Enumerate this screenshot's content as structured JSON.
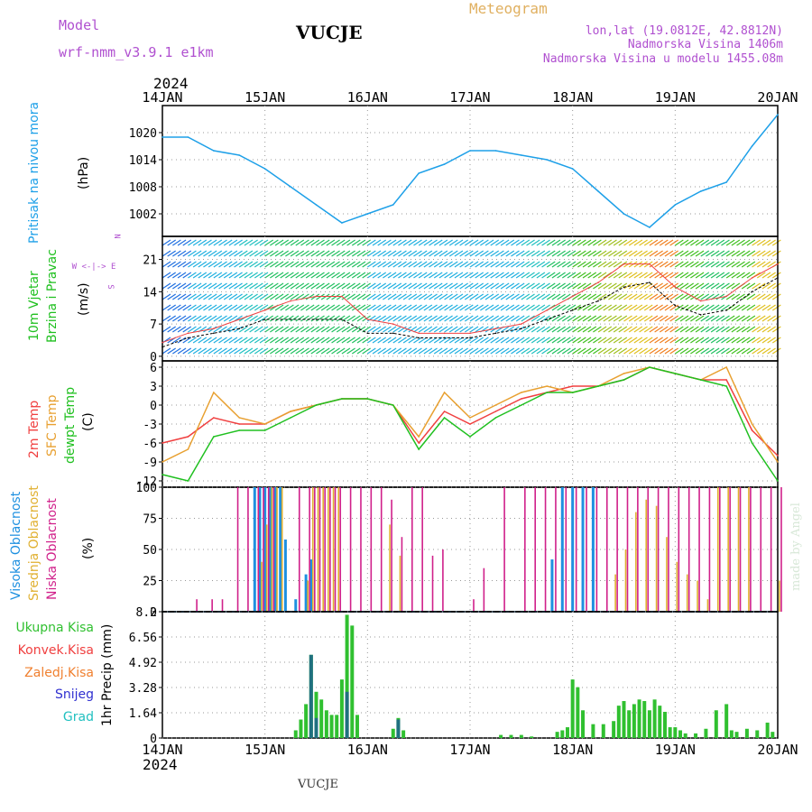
{
  "header": {
    "model_label": "Model",
    "model_name": "wrf-nmm_v3.9.1 e1km",
    "station": "VUCJE",
    "product": "Meteogram",
    "lonlat": "lon,lat (19.0812E, 42.8812N)",
    "elevation": "Nadmorska Visina 1406m",
    "model_elevation": "Nadmorska Visina u modelu 1455.08m",
    "watermark": "made by Angel",
    "footer_station": "VUCJE"
  },
  "axis": {
    "year_top": "2024",
    "year_bottom": "2024",
    "days": [
      "14JAN",
      "15JAN",
      "16JAN",
      "17JAN",
      "18JAN",
      "19JAN",
      "20JAN"
    ]
  },
  "colors": {
    "pressure": "#1ea0e8",
    "temp2m": "#f04040",
    "sfc": "#e8a030",
    "dewpt": "#20c020",
    "high_cloud": "#1e90e0",
    "mid_cloud": "#e0b030",
    "low_cloud": "#d0208a",
    "total_precip": "#30c030",
    "conv_precip": "#f04040",
    "frz_precip": "#f08030",
    "snow": "#3030d0",
    "graupel": "#20c0c0"
  },
  "chart_data": [
    {
      "type": "line",
      "panel": "pressure",
      "ylabels": [
        "Pritisak na nivou mora",
        "(hPa)"
      ],
      "ylim": [
        997,
        1026
      ],
      "yticks": [
        1002,
        1008,
        1014,
        1020
      ],
      "grid": true,
      "x": [
        0,
        0.25,
        0.5,
        0.75,
        1,
        1.25,
        1.5,
        1.75,
        2,
        2.25,
        2.5,
        2.75,
        3,
        3.25,
        3.5,
        3.75,
        4,
        4.25,
        4.5,
        4.75,
        5,
        5.25,
        5.5,
        5.75,
        6
      ],
      "series": [
        {
          "name": "Pritisak na nivou mora",
          "values": [
            1019,
            1019,
            1016,
            1015,
            1012,
            1008,
            1004,
            1000,
            1002,
            1004,
            1011,
            1013,
            1016,
            1016,
            1015,
            1014,
            1012,
            1007,
            1002,
            999,
            1004,
            1007,
            1009,
            1017,
            1024
          ]
        }
      ]
    },
    {
      "type": "line",
      "panel": "wind",
      "ylabels": [
        "10m Vjetar",
        "Brzina i Pravac",
        "(m/s)"
      ],
      "legend_symbol": [
        "N",
        "W <-|-> E",
        "S"
      ],
      "ylim": [
        -1,
        26
      ],
      "yticks": [
        0,
        7,
        14,
        21
      ],
      "grid": true,
      "x": [
        0,
        0.25,
        0.5,
        0.75,
        1,
        1.25,
        1.5,
        1.75,
        2,
        2.25,
        2.5,
        2.75,
        3,
        3.25,
        3.5,
        3.75,
        4,
        4.25,
        4.5,
        4.75,
        5,
        5.25,
        5.5,
        5.75,
        6
      ],
      "series": [
        {
          "name": "speed",
          "values": [
            2,
            4,
            5,
            6,
            8,
            8,
            8,
            8,
            5,
            5,
            4,
            4,
            4,
            5,
            6,
            8,
            10,
            12,
            15,
            16,
            11,
            9,
            10,
            14,
            17
          ]
        },
        {
          "name": "gust",
          "values": [
            3,
            5,
            6,
            8,
            10,
            12,
            13,
            13,
            8,
            7,
            5,
            5,
            5,
            6,
            7,
            10,
            13,
            16,
            20,
            20,
            15,
            12,
            13,
            17,
            20
          ]
        }
      ]
    },
    {
      "type": "line",
      "panel": "temperature",
      "ylabels": [
        "2m Temp",
        "SFC Temp",
        "dewpt Temp",
        "(C)"
      ],
      "ylim": [
        -13,
        7
      ],
      "yticks": [
        -12,
        -9,
        -6,
        -3,
        0,
        3,
        6
      ],
      "grid": true,
      "x": [
        0,
        0.25,
        0.5,
        0.75,
        1,
        1.25,
        1.5,
        1.75,
        2,
        2.25,
        2.5,
        2.75,
        3,
        3.25,
        3.5,
        3.75,
        4,
        4.25,
        4.5,
        4.75,
        5,
        5.25,
        5.5,
        5.75,
        6
      ],
      "series": [
        {
          "name": "2m Temp",
          "values": [
            -6,
            -5,
            -2,
            -3,
            -3,
            -1,
            0,
            1,
            1,
            0,
            -6,
            -1,
            -3,
            -1,
            1,
            2,
            3,
            3,
            4,
            6,
            5,
            4,
            4,
            -4,
            -8
          ]
        },
        {
          "name": "SFC Temp",
          "values": [
            -9,
            -7,
            2,
            -2,
            -3,
            -1,
            0,
            1,
            1,
            0,
            -5,
            2,
            -2,
            0,
            2,
            3,
            2,
            3,
            5,
            6,
            5,
            4,
            6,
            -3,
            -9
          ]
        },
        {
          "name": "dewpt Temp",
          "values": [
            -11,
            -12,
            -5,
            -4,
            -4,
            -2,
            0,
            1,
            1,
            0,
            -7,
            -2,
            -5,
            -2,
            0,
            2,
            2,
            3,
            4,
            6,
            5,
            4,
            3,
            -6,
            -12
          ]
        }
      ]
    },
    {
      "type": "bar",
      "panel": "cloud",
      "ylabels": [
        "Visoka Oblacnost",
        "Srednja Oblacnost",
        "Niska Oblacnost",
        "(%)"
      ],
      "ylim": [
        0,
        100
      ],
      "yticks": [
        0,
        25,
        50,
        75,
        100
      ],
      "grid": true,
      "x": [
        0.3,
        0.45,
        0.55,
        0.7,
        0.8,
        0.9,
        0.95,
        1.0,
        1.05,
        1.1,
        1.15,
        1.2,
        1.3,
        1.4,
        1.45,
        1.5,
        1.55,
        1.6,
        1.65,
        1.7,
        1.8,
        1.9,
        2.0,
        2.1,
        2.2,
        2.3,
        2.4,
        2.5,
        2.6,
        2.7,
        2.8,
        3.0,
        3.1,
        3.3,
        3.5,
        3.6,
        3.7,
        3.8,
        3.9,
        4.0,
        4.1,
        4.2,
        4.3,
        4.4,
        4.5,
        4.6,
        4.7,
        4.8,
        4.9,
        5.0,
        5.1,
        5.2,
        5.3,
        5.4,
        5.5,
        5.6,
        5.7,
        5.8,
        5.9,
        6.0
      ],
      "series": [
        {
          "name": "Visoka Oblacnost",
          "values": [
            0,
            0,
            0,
            0,
            0,
            100,
            100,
            100,
            100,
            100,
            100,
            58,
            10,
            30,
            42,
            0,
            0,
            0,
            0,
            0,
            0,
            0,
            0,
            0,
            0,
            0,
            0,
            0,
            0,
            0,
            0,
            0,
            0,
            0,
            0,
            0,
            0,
            42,
            100,
            100,
            100,
            100,
            0,
            0,
            0,
            0,
            0,
            0,
            0,
            0,
            0,
            0,
            0,
            0,
            0,
            0,
            0,
            0,
            0,
            0
          ]
        },
        {
          "name": "Srednja Oblacnost",
          "values": [
            0,
            0,
            0,
            0,
            0,
            0,
            40,
            70,
            100,
            100,
            100,
            0,
            0,
            25,
            100,
            100,
            100,
            100,
            100,
            100,
            0,
            0,
            0,
            0,
            70,
            45,
            0,
            0,
            0,
            0,
            0,
            0,
            0,
            0,
            0,
            0,
            0,
            0,
            0,
            0,
            0,
            0,
            0,
            30,
            50,
            80,
            90,
            85,
            60,
            40,
            30,
            25,
            10,
            100,
            100,
            100,
            100,
            0,
            0,
            25
          ]
        },
        {
          "name": "Niska Oblacnost",
          "values": [
            10,
            10,
            10,
            100,
            100,
            100,
            100,
            100,
            100,
            0,
            0,
            0,
            100,
            100,
            100,
            100,
            100,
            100,
            100,
            100,
            100,
            100,
            100,
            100,
            90,
            60,
            100,
            100,
            45,
            50,
            0,
            10,
            35,
            100,
            100,
            100,
            100,
            100,
            100,
            100,
            100,
            100,
            100,
            100,
            100,
            100,
            100,
            100,
            100,
            100,
            100,
            100,
            100,
            100,
            100,
            100,
            100,
            100,
            100,
            100
          ]
        }
      ]
    },
    {
      "type": "bar",
      "panel": "precip",
      "ylabels": [
        "Ukupna Kisa",
        "Konvek.Kisa",
        "Zaledj.Kisa",
        "Snijeg",
        "Grad",
        "1hr Precip (mm)"
      ],
      "ylim": [
        0,
        8.2
      ],
      "yticks": [
        0,
        1.64,
        3.28,
        4.92,
        6.56,
        8.2
      ],
      "grid": true,
      "x": [
        1.3,
        1.35,
        1.4,
        1.45,
        1.5,
        1.55,
        1.6,
        1.65,
        1.7,
        1.75,
        1.8,
        1.85,
        1.9,
        2.25,
        2.3,
        2.35,
        3.3,
        3.4,
        3.5,
        3.6,
        3.85,
        3.9,
        3.95,
        4.0,
        4.05,
        4.1,
        4.2,
        4.3,
        4.4,
        4.45,
        4.5,
        4.55,
        4.6,
        4.65,
        4.7,
        4.75,
        4.8,
        4.85,
        4.9,
        4.95,
        5.0,
        5.05,
        5.1,
        5.2,
        5.3,
        5.4,
        5.5,
        5.55,
        5.6,
        5.7,
        5.8,
        5.9,
        5.95
      ],
      "series": [
        {
          "name": "Ukupna Kisa",
          "values": [
            0.5,
            1.2,
            2.2,
            5.4,
            3.0,
            2.5,
            1.8,
            1.5,
            1.5,
            3.8,
            8.0,
            7.3,
            1.5,
            0.6,
            1.3,
            0.5,
            0.2,
            0.2,
            0.2,
            0.1,
            0.4,
            0.5,
            0.7,
            3.8,
            3.3,
            1.8,
            0.9,
            0.9,
            1.1,
            2.1,
            2.4,
            1.8,
            2.2,
            2.5,
            2.4,
            1.8,
            2.5,
            2.1,
            1.7,
            0.7,
            0.7,
            0.5,
            0.3,
            0.3,
            0.6,
            1.8,
            2.2,
            0.5,
            0.4,
            0.6,
            0.5,
            1.0,
            0.4
          ]
        },
        {
          "name": "Snijeg",
          "values": [
            0,
            0,
            0,
            5.4,
            1.3,
            0,
            0,
            0,
            0,
            0,
            3.0,
            0,
            0,
            0,
            1.2,
            0,
            0,
            0,
            0,
            0,
            0,
            0,
            0,
            0,
            0,
            0,
            0,
            0,
            0,
            0,
            0,
            0,
            0,
            0,
            0,
            0,
            0,
            0,
            0,
            0,
            0,
            0,
            0,
            0,
            0,
            0,
            0,
            0,
            0,
            0,
            0,
            0,
            0
          ]
        }
      ]
    }
  ]
}
